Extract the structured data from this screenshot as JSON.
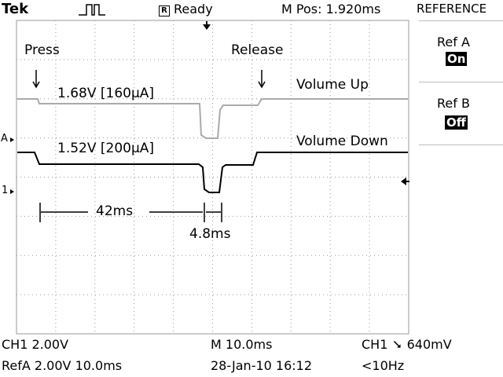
{
  "header": {
    "brand": "Tek",
    "trigger_state": "Ready",
    "trigger_state_icon": "R",
    "m_pos": "M Pos: 1.920ms",
    "menu_title": "REFERENCE"
  },
  "ref_menu": {
    "ref_a_label": "Ref A",
    "ref_a_state": "On",
    "ref_b_label": "Ref B",
    "ref_b_state": "Off"
  },
  "annotations": {
    "press": "Press",
    "release": "Release",
    "trace1_label": "Volume Up",
    "trace1_value": "1.68V [160µA]",
    "trace2_label": "Volume Down",
    "trace2_value": "1.52V [200µA]",
    "interval1": "42ms",
    "interval2": "4.8ms"
  },
  "markers": {
    "ref_a": "A",
    "ch1": "1"
  },
  "footer": {
    "ch1_scale": "CH1  2.00V",
    "refa_scale": "RefA 2.00V 10.0ms",
    "timebase": "M 10.0ms",
    "date": "28-Jan-10 16:12",
    "trigger_src": "CH1",
    "trigger_level": "640mV",
    "trigger_freq": "<10Hz"
  },
  "colors": {
    "ref_trace": "#aaaaaa",
    "live_trace": "#000000",
    "grid": "#999999"
  }
}
